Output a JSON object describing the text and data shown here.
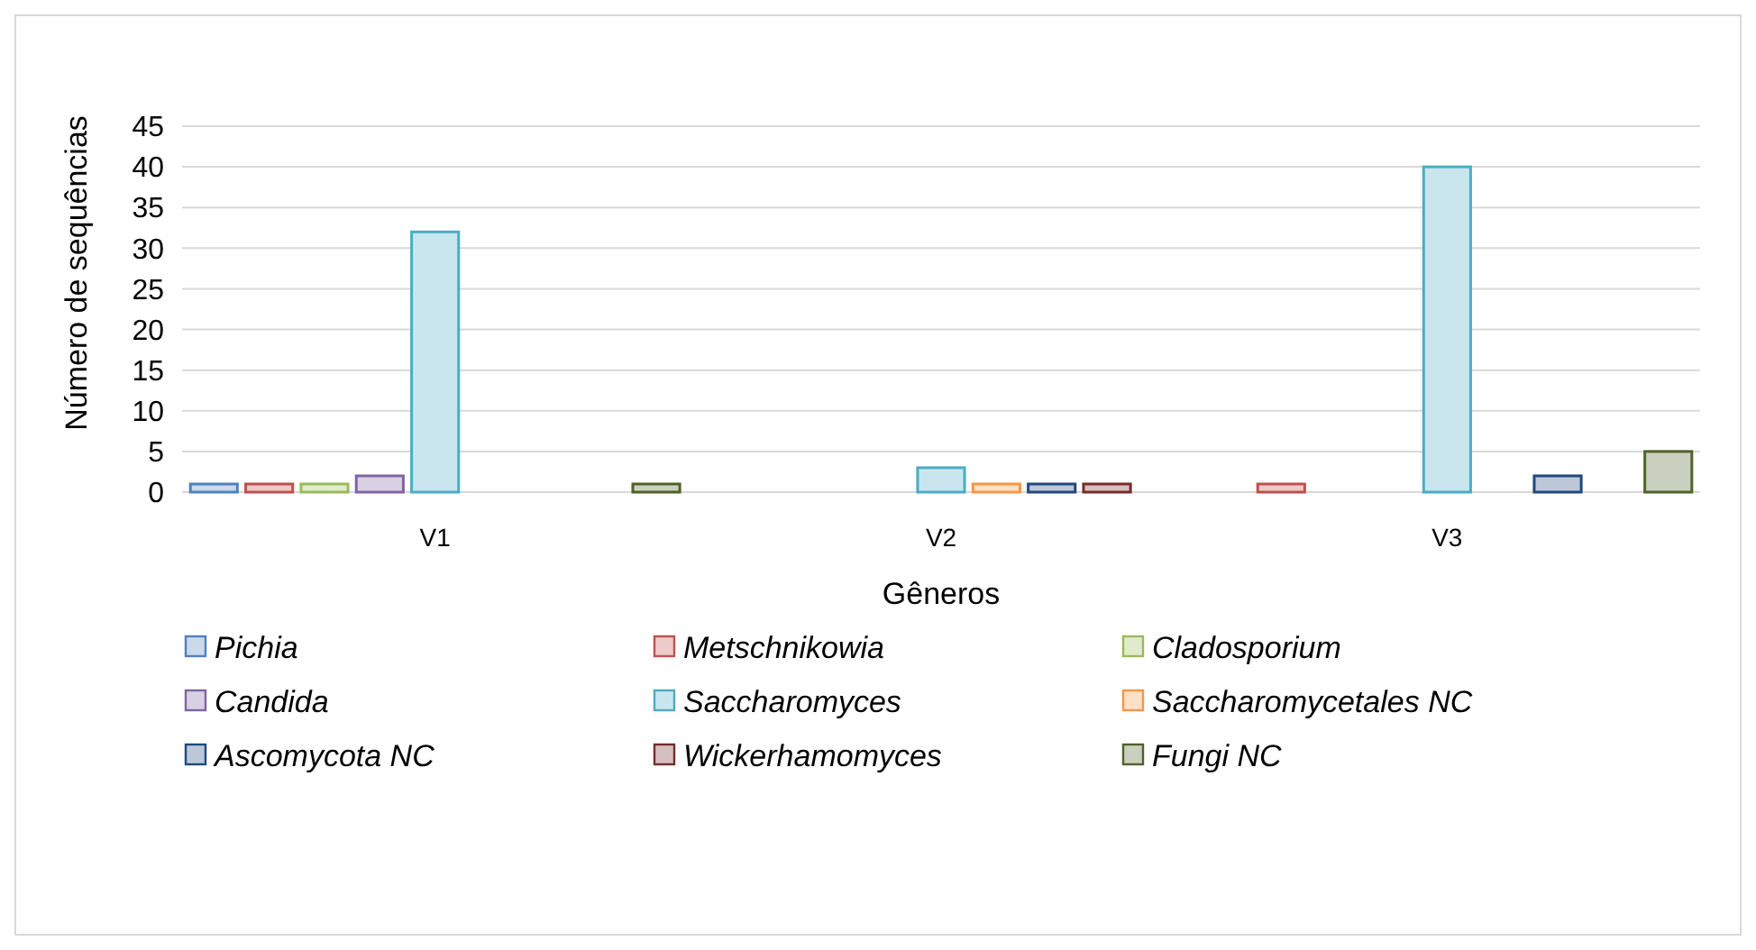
{
  "chart_data": {
    "type": "bar",
    "xlabel": "Gêneros",
    "ylabel": "Número de sequências",
    "categories": [
      "V1",
      "V2",
      "V3"
    ],
    "ylim": [
      0,
      45
    ],
    "yticks": [
      0,
      5,
      10,
      15,
      20,
      25,
      30,
      35,
      40,
      45
    ],
    "grid": "y",
    "legend": "bottom",
    "series": [
      {
        "name": "Pichia",
        "color": "#4f81bd",
        "values": [
          1,
          null,
          null
        ]
      },
      {
        "name": "Metschnikowia",
        "color": "#c0504d",
        "values": [
          1,
          null,
          1
        ]
      },
      {
        "name": "Cladosporium",
        "color": "#9bbb59",
        "values": [
          1,
          null,
          null
        ]
      },
      {
        "name": "Candida",
        "color": "#8064a2",
        "values": [
          2,
          null,
          null
        ]
      },
      {
        "name": "Saccharomyces",
        "color": "#4bacc6",
        "values": [
          32,
          3,
          40
        ]
      },
      {
        "name": "Saccharomycetales NC",
        "color": "#f79646",
        "values": [
          null,
          1,
          null
        ]
      },
      {
        "name": "Ascomycota NC",
        "color": "#1f497d",
        "values": [
          null,
          1,
          2
        ]
      },
      {
        "name": "Wickerhamomyces",
        "color": "#772c2a",
        "values": [
          null,
          1,
          null
        ]
      },
      {
        "name": "Fungi NC",
        "color": "#4f6228",
        "values": [
          1,
          null,
          5
        ]
      }
    ]
  }
}
